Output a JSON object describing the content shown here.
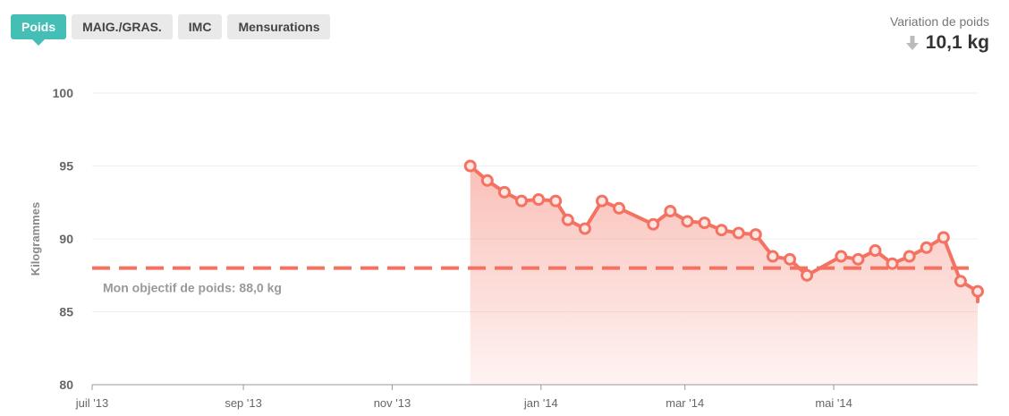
{
  "tabs": [
    {
      "label": "Poids",
      "active": true
    },
    {
      "label": "MAIG./GRAS.",
      "active": false
    },
    {
      "label": "IMC",
      "active": false
    },
    {
      "label": "Mensurations",
      "active": false
    }
  ],
  "variation": {
    "label": "Variation de poids",
    "value": "10,1 kg",
    "direction_icon": "arrow-down-icon"
  },
  "colors": {
    "tab_active": "#45bfb6",
    "line": "#f47262",
    "fill": "#f9b3a9",
    "goal": "#f47262",
    "grid": "#efefef",
    "axis": "#999999"
  },
  "chart_data": {
    "type": "area",
    "ylabel": "Kilogrammes",
    "ylim": [
      80,
      100
    ],
    "yticks": [
      100,
      95,
      90,
      85,
      80
    ],
    "xlabels": [
      "juil '13",
      "sep '13",
      "nov '13",
      "jan '14",
      "mar '14",
      "mai '14"
    ],
    "xticks": [
      "2013-07-01",
      "2013-09-01",
      "2013-11-01",
      "2014-01-01",
      "2014-03-01",
      "2014-05-01"
    ],
    "xlim": [
      "2013-07-01",
      "2014-06-29"
    ],
    "goal": {
      "value": 88.0,
      "label": "Mon objectif de poids: 88,0 kg"
    },
    "grid": true,
    "legend": "none",
    "series": [
      {
        "points": [
          {
            "x": "2013-12-03",
            "y": 95.0
          },
          {
            "x": "2013-12-10",
            "y": 94.0
          },
          {
            "x": "2013-12-17",
            "y": 93.2
          },
          {
            "x": "2013-12-24",
            "y": 92.6
          },
          {
            "x": "2013-12-31",
            "y": 92.7
          },
          {
            "x": "2014-01-07",
            "y": 92.6
          },
          {
            "x": "2014-01-12",
            "y": 91.3
          },
          {
            "x": "2014-01-19",
            "y": 90.7
          },
          {
            "x": "2014-01-26",
            "y": 92.6
          },
          {
            "x": "2014-02-02",
            "y": 92.1
          },
          {
            "x": "2014-02-16",
            "y": 91.0
          },
          {
            "x": "2014-02-23",
            "y": 91.9
          },
          {
            "x": "2014-03-02",
            "y": 91.2
          },
          {
            "x": "2014-03-09",
            "y": 91.1
          },
          {
            "x": "2014-03-16",
            "y": 90.6
          },
          {
            "x": "2014-03-23",
            "y": 90.4
          },
          {
            "x": "2014-03-30",
            "y": 90.3
          },
          {
            "x": "2014-04-06",
            "y": 88.8
          },
          {
            "x": "2014-04-13",
            "y": 88.6
          },
          {
            "x": "2014-04-20",
            "y": 87.5
          },
          {
            "x": "2014-05-04",
            "y": 88.8
          },
          {
            "x": "2014-05-11",
            "y": 88.6
          },
          {
            "x": "2014-05-18",
            "y": 89.2
          },
          {
            "x": "2014-05-25",
            "y": 88.3
          },
          {
            "x": "2014-06-01",
            "y": 88.8
          },
          {
            "x": "2014-06-08",
            "y": 89.4
          },
          {
            "x": "2014-06-15",
            "y": 90.1
          },
          {
            "x": "2014-06-22",
            "y": 87.1
          },
          {
            "x": "2014-06-29",
            "y": 86.4
          }
        ],
        "trailing": {
          "x": "2014-06-29",
          "y": 85.7
        }
      }
    ]
  }
}
